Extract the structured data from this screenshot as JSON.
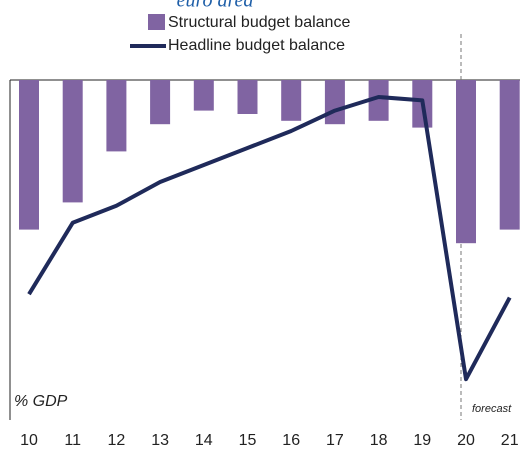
{
  "chart_data": {
    "type": "bar_line",
    "title": "euro area",
    "categories": [
      "10",
      "11",
      "12",
      "13",
      "14",
      "15",
      "16",
      "17",
      "18",
      "19",
      "20",
      "21"
    ],
    "series": [
      {
        "name": "Structural budget balance",
        "type": "bar",
        "color": "#8064a2",
        "values": [
          -4.4,
          -3.6,
          -2.1,
          -1.3,
          -0.9,
          -1.0,
          -1.2,
          -1.3,
          -1.2,
          -1.4,
          -4.8,
          -4.4
        ]
      },
      {
        "name": "Headline budget balance",
        "type": "line",
        "color": "#1f2a5a",
        "values": [
          -6.3,
          -4.2,
          -3.7,
          -3.0,
          -2.5,
          -2.0,
          -1.5,
          -0.9,
          -0.5,
          -0.6,
          -8.8,
          -6.4
        ]
      }
    ],
    "ylim": [
      -10,
      0
    ],
    "y_label": "% GDP",
    "annotation": "forecast"
  }
}
